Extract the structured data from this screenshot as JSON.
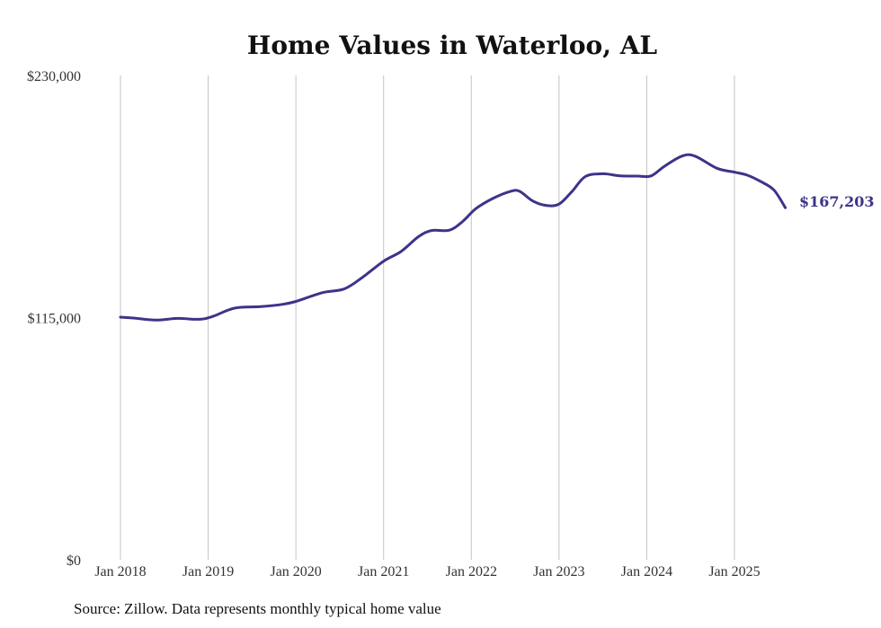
{
  "chart_data": {
    "type": "line",
    "title": "Home Values in Waterloo, AL",
    "xlabel": "",
    "ylabel": "",
    "ylim": [
      0,
      230000
    ],
    "y_ticks": [
      {
        "value": 0,
        "label": "$0"
      },
      {
        "value": 115000,
        "label": "$115,000"
      },
      {
        "value": 230000,
        "label": "$230,000"
      }
    ],
    "x_ticks": [
      {
        "value": 2018,
        "label": "Jan 2018"
      },
      {
        "value": 2019,
        "label": "Jan 2019"
      },
      {
        "value": 2020,
        "label": "Jan 2020"
      },
      {
        "value": 2021,
        "label": "Jan 2021"
      },
      {
        "value": 2022,
        "label": "Jan 2022"
      },
      {
        "value": 2023,
        "label": "Jan 2023"
      },
      {
        "value": 2024,
        "label": "Jan 2024"
      },
      {
        "value": 2025,
        "label": "Jan 2025"
      }
    ],
    "xlim": [
      2018,
      2025.58
    ],
    "grid": {
      "vertical": true,
      "horizontal": false
    },
    "line_color": "#3c3489",
    "end_label": "$167,203",
    "series": [
      {
        "x": [
          2018.0,
          2018.15,
          2018.4,
          2018.65,
          2018.9,
          2019.05,
          2019.3,
          2019.6,
          2019.85,
          2020.0,
          2020.3,
          2020.55,
          2020.75,
          2021.0,
          2021.2,
          2021.4,
          2021.55,
          2021.75,
          2021.9,
          2022.05,
          2022.25,
          2022.45,
          2022.55,
          2022.7,
          2022.85,
          2023.0,
          2023.15,
          2023.3,
          2023.5,
          2023.7,
          2023.9,
          2024.05,
          2024.2,
          2024.4,
          2024.55,
          2024.8,
          2025.0,
          2025.15,
          2025.3,
          2025.45,
          2025.58
        ],
        "y": [
          115200,
          114800,
          113800,
          114600,
          114200,
          115500,
          119500,
          120200,
          121300,
          122700,
          126800,
          128600,
          133800,
          141800,
          146400,
          153500,
          156400,
          156500,
          160600,
          166700,
          171700,
          175000,
          175000,
          170400,
          168300,
          168900,
          175000,
          182000,
          183300,
          182300,
          182200,
          182300,
          186800,
          191700,
          191700,
          185900,
          184100,
          182600,
          179600,
          175600,
          167203
        ]
      }
    ]
  },
  "footer": {
    "source": "Source: Zillow. Data represents monthly typical home value"
  }
}
